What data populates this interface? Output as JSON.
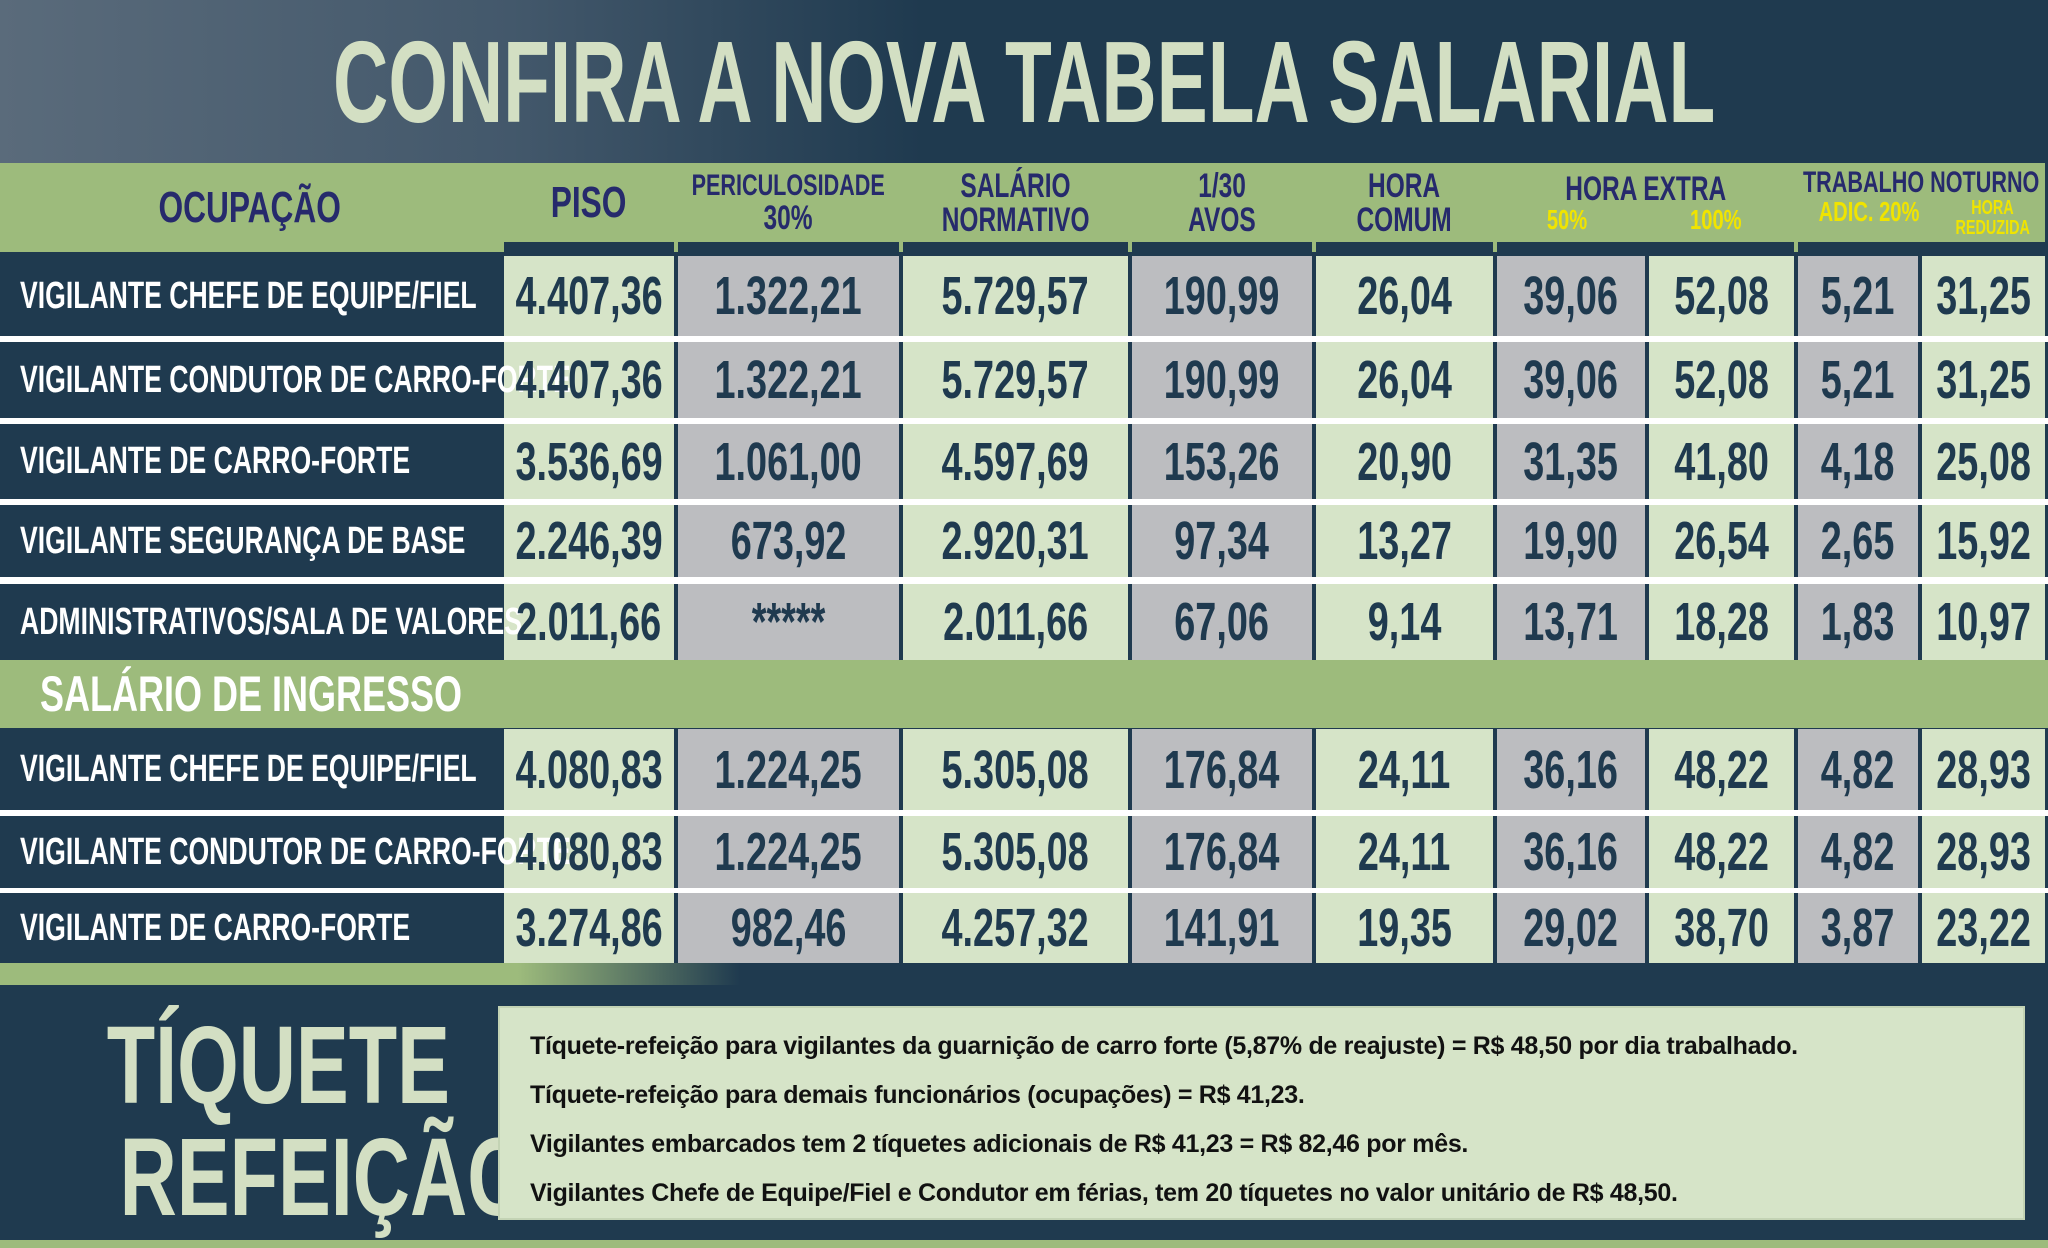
{
  "title": "CONFIRA A NOVA TABELA SALARIAL",
  "colors": {
    "navy": "#1f3a4f",
    "header_green": "#9dbb7c",
    "light_green": "#d6e4c8",
    "gray": "#bcbdc0",
    "header_text": "#262a6c",
    "yellow": "#f0e400",
    "cream": "#d3dfc3"
  },
  "header": {
    "ocupacao": "OCUPAÇÃO",
    "piso": "PISO",
    "peric_1": "PERICULOSIDADE",
    "peric_2": "30%",
    "sal_1": "SALÁRIO",
    "sal_2": "NORMATIVO",
    "avos_1": "1/30",
    "avos_2": "AVOS",
    "hora_1": "HORA",
    "hora_2": "COMUM",
    "extra": "HORA EXTRA",
    "extra_50": "50%",
    "extra_100": "100%",
    "noturno": "TRABALHO NOTURNO",
    "adic": "ADIC. 20%",
    "reduzida_1": "HORA",
    "reduzida_2": "REDUZIDA"
  },
  "rows": [
    {
      "occ": "VIGILANTE CHEFE DE EQUIPE/FIEL",
      "v": [
        "4.407,36",
        "1.322,21",
        "5.729,57",
        "190,99",
        "26,04",
        "39,06",
        "52,08",
        "5,21",
        "31,25"
      ]
    },
    {
      "occ": "VIGILANTE CONDUTOR DE CARRO-FORTE",
      "v": [
        "4.407,36",
        "1.322,21",
        "5.729,57",
        "190,99",
        "26,04",
        "39,06",
        "52,08",
        "5,21",
        "31,25"
      ]
    },
    {
      "occ": "VIGILANTE DE CARRO-FORTE",
      "v": [
        "3.536,69",
        "1.061,00",
        "4.597,69",
        "153,26",
        "20,90",
        "31,35",
        "41,80",
        "4,18",
        "25,08"
      ]
    },
    {
      "occ": "VIGILANTE SEGURANÇA DE BASE",
      "v": [
        "2.246,39",
        "673,92",
        "2.920,31",
        "97,34",
        "13,27",
        "19,90",
        "26,54",
        "2,65",
        "15,92"
      ]
    },
    {
      "occ": "ADMINISTRATIVOS/SALA DE VALORES",
      "v": [
        "2.011,66",
        "*****",
        "2.011,66",
        "67,06",
        "9,14",
        "13,71",
        "18,28",
        "1,83",
        "10,97"
      ]
    }
  ],
  "section": "SALÁRIO DE INGRESSO",
  "ingresso": [
    {
      "occ": "VIGILANTE CHEFE DE EQUIPE/FIEL",
      "v": [
        "4.080,83",
        "1.224,25",
        "5.305,08",
        "176,84",
        "24,11",
        "36,16",
        "48,22",
        "4,82",
        "28,93"
      ]
    },
    {
      "occ": "VIGILANTE CONDUTOR DE CARRO-FORTE",
      "v": [
        "4.080,83",
        "1.224,25",
        "5.305,08",
        "176,84",
        "24,11",
        "36,16",
        "48,22",
        "4,82",
        "28,93"
      ]
    },
    {
      "occ": "VIGILANTE DE CARRO-FORTE",
      "v": [
        "3.274,86",
        "982,46",
        "4.257,32",
        "141,91",
        "19,35",
        "29,02",
        "38,70",
        "3,87",
        "23,22"
      ]
    }
  ],
  "ticket": {
    "title_1": "TÍQUETE",
    "title_2": "REFEIÇÃO",
    "lines": [
      "Tíquete-refeição para vigilantes da guarnição de carro forte (5,87% de reajuste) = R$ 48,50 por dia trabalhado.",
      "Tíquete-refeição para demais funcionários (ocupações) = R$ 41,23.",
      "Vigilantes embarcados tem 2 tíquetes adicionais de R$ 41,23 = R$ 82,46 por mês.",
      "Vigilantes Chefe de Equipe/Fiel e Condutor em férias, tem 20 tíquetes no valor unitário de R$ 48,50."
    ]
  }
}
